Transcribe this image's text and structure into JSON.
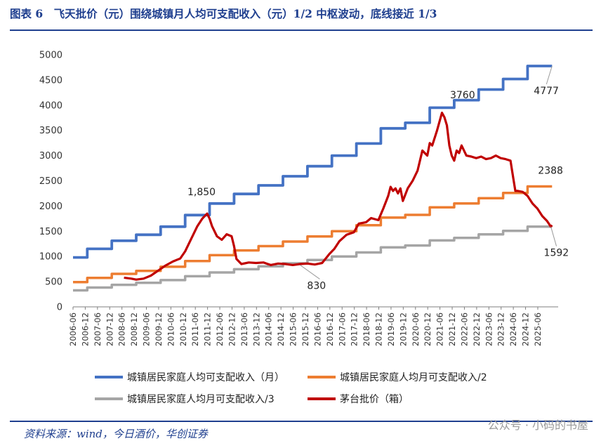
{
  "header": {
    "title": "图表 6　飞天批价（元）围绕城镇月人均可支配收入（元）1/2 中枢波动，底线接近 1/3"
  },
  "footer": {
    "source": "资料来源：wind，今日酒价，华创证券",
    "watermark": "公众号 · 小码的书屋"
  },
  "colors": {
    "blue": "#4472C4",
    "orange": "#ED7D31",
    "gray": "#A5A5A5",
    "red": "#C00000",
    "title": "#1f3f8f"
  },
  "chart_data": {
    "type": "line",
    "title": "飞天批价（元）围绕城镇月人均可支配收入（元）1/2 中枢波动，底线接近 1/3",
    "ylim": [
      0,
      5000
    ],
    "yticks": [
      "0",
      "500",
      "1000",
      "1500",
      "2000",
      "2500",
      "3000",
      "3500",
      "4000",
      "4500",
      "5000"
    ],
    "xlim": [
      2006.417,
      2026.25
    ],
    "categories": [
      "2006-06",
      "2006-12",
      "2007-06",
      "2007-12",
      "2008-06",
      "2008-12",
      "2009-06",
      "2009-12",
      "2010-06",
      "2010-12",
      "2011-06",
      "2011-12",
      "2012-06",
      "2012-12",
      "2013-06",
      "2013-12",
      "2014-06",
      "2014-12",
      "2015-06",
      "2015-12",
      "2016-06",
      "2016-12",
      "2017-06",
      "2017-12",
      "2018-06",
      "2018-12",
      "2019-06",
      "2019-12",
      "2020-06",
      "2020-12",
      "2021-06",
      "2021-12",
      "2022-06",
      "2022-12",
      "2023-06",
      "2023-12",
      "2024-06",
      "2024-12",
      "2025-06"
    ],
    "series": [
      {
        "name": "城镇居民家庭人均可支配收入（月）",
        "color": "#4472C4",
        "x": [
          2006.417,
          2007.0,
          2007.0,
          2008.0,
          2008.0,
          2009.0,
          2009.0,
          2010.0,
          2010.0,
          2011.0,
          2011.0,
          2012.0,
          2012.0,
          2013.0,
          2013.0,
          2014.0,
          2014.0,
          2015.0,
          2015.0,
          2016.0,
          2016.0,
          2017.0,
          2017.0,
          2018.0,
          2018.0,
          2019.0,
          2019.0,
          2020.0,
          2020.0,
          2021.0,
          2021.0,
          2022.0,
          2022.0,
          2023.0,
          2023.0,
          2024.0,
          2024.0,
          2025.0,
          2025.0,
          2026.0
        ],
        "y": [
          980,
          980,
          1150,
          1150,
          1310,
          1310,
          1430,
          1430,
          1590,
          1590,
          1820,
          1820,
          2050,
          2050,
          2240,
          2240,
          2410,
          2410,
          2590,
          2590,
          2790,
          2790,
          3000,
          3000,
          3240,
          3240,
          3540,
          3540,
          3650,
          3650,
          3950,
          3950,
          4100,
          4100,
          4310,
          4310,
          4520,
          4520,
          4777,
          4777
        ]
      },
      {
        "name": "城镇居民家庭人均月可支配收入/2",
        "color": "#ED7D31",
        "x": [
          2006.417,
          2007.0,
          2007.0,
          2008.0,
          2008.0,
          2009.0,
          2009.0,
          2010.0,
          2010.0,
          2011.0,
          2011.0,
          2012.0,
          2012.0,
          2013.0,
          2013.0,
          2014.0,
          2014.0,
          2015.0,
          2015.0,
          2016.0,
          2016.0,
          2017.0,
          2017.0,
          2018.0,
          2018.0,
          2019.0,
          2019.0,
          2020.0,
          2020.0,
          2021.0,
          2021.0,
          2022.0,
          2022.0,
          2023.0,
          2023.0,
          2024.0,
          2024.0,
          2025.0,
          2025.0,
          2026.0
        ],
        "y": [
          490,
          490,
          575,
          575,
          655,
          655,
          715,
          715,
          795,
          795,
          910,
          910,
          1025,
          1025,
          1120,
          1120,
          1205,
          1205,
          1295,
          1295,
          1395,
          1395,
          1500,
          1500,
          1620,
          1620,
          1770,
          1770,
          1825,
          1825,
          1975,
          1975,
          2050,
          2050,
          2155,
          2155,
          2260,
          2260,
          2388,
          2388
        ]
      },
      {
        "name": "城镇居民家庭人均月可支配收入/3",
        "color": "#A5A5A5",
        "x": [
          2006.417,
          2007.0,
          2007.0,
          2008.0,
          2008.0,
          2009.0,
          2009.0,
          2010.0,
          2010.0,
          2011.0,
          2011.0,
          2012.0,
          2012.0,
          2013.0,
          2013.0,
          2014.0,
          2014.0,
          2015.0,
          2015.0,
          2016.0,
          2016.0,
          2017.0,
          2017.0,
          2018.0,
          2018.0,
          2019.0,
          2019.0,
          2020.0,
          2020.0,
          2021.0,
          2021.0,
          2022.0,
          2022.0,
          2023.0,
          2023.0,
          2024.0,
          2024.0,
          2025.0,
          2025.0,
          2026.0
        ],
        "y": [
          327,
          327,
          383,
          383,
          437,
          437,
          477,
          477,
          530,
          530,
          607,
          607,
          683,
          683,
          747,
          747,
          803,
          803,
          863,
          863,
          930,
          930,
          1000,
          1000,
          1080,
          1080,
          1180,
          1180,
          1217,
          1217,
          1317,
          1317,
          1367,
          1367,
          1437,
          1437,
          1507,
          1507,
          1592,
          1592
        ]
      },
      {
        "name": "茅台批价（箱）",
        "color": "#C00000",
        "x": [
          2008.5,
          2008.8,
          2009.0,
          2009.3,
          2009.6,
          2009.9,
          2010.2,
          2010.5,
          2010.8,
          2011.0,
          2011.2,
          2011.5,
          2011.7,
          2011.9,
          2012.0,
          2012.1,
          2012.3,
          2012.5,
          2012.7,
          2012.9,
          2013.0,
          2013.1,
          2013.3,
          2013.6,
          2013.9,
          2014.2,
          2014.5,
          2014.8,
          2015.1,
          2015.4,
          2015.7,
          2016.0,
          2016.3,
          2016.6,
          2016.9,
          2017.1,
          2017.3,
          2017.6,
          2017.9,
          2018.1,
          2018.4,
          2018.6,
          2018.9,
          2019.1,
          2019.3,
          2019.4,
          2019.5,
          2019.6,
          2019.7,
          2019.8,
          2019.9,
          2020.1,
          2020.3,
          2020.5,
          2020.7,
          2020.9,
          2021.0,
          2021.1,
          2021.3,
          2021.5,
          2021.6,
          2021.7,
          2021.8,
          2021.9,
          2022.0,
          2022.1,
          2022.2,
          2022.3,
          2022.5,
          2022.7,
          2022.9,
          2023.1,
          2023.3,
          2023.5,
          2023.7,
          2023.9,
          2024.1,
          2024.3,
          2024.4,
          2024.5,
          2024.6,
          2024.8,
          2025.0,
          2025.2,
          2025.4,
          2025.6,
          2025.8,
          2025.95,
          2026.0
        ],
        "y": [
          580,
          560,
          540,
          560,
          620,
          720,
          820,
          900,
          960,
          1100,
          1300,
          1600,
          1750,
          1850,
          1750,
          1600,
          1400,
          1330,
          1440,
          1400,
          1200,
          950,
          850,
          880,
          870,
          880,
          830,
          860,
          850,
          830,
          850,
          860,
          840,
          870,
          1050,
          1150,
          1300,
          1430,
          1480,
          1650,
          1680,
          1760,
          1720,
          1950,
          2200,
          2380,
          2300,
          2350,
          2250,
          2350,
          2100,
          2350,
          2500,
          2700,
          3100,
          3000,
          3250,
          3200,
          3500,
          3850,
          3760,
          3600,
          3200,
          3000,
          2900,
          3100,
          3050,
          3200,
          3000,
          2980,
          2950,
          2980,
          2930,
          2950,
          3000,
          2950,
          2930,
          2900,
          2600,
          2300,
          2300,
          2280,
          2200,
          2050,
          1950,
          1800,
          1700,
          1592,
          1620
        ]
      }
    ],
    "annotations": [
      {
        "text": "1,850",
        "x": 2011.9,
        "y": 1850
      },
      {
        "text": "3760",
        "x": 2021.6,
        "y": 3760
      },
      {
        "text": "4777",
        "x": 2026.0,
        "y": 4777
      },
      {
        "text": "2388",
        "x": 2026.0,
        "y": 2388
      },
      {
        "text": "1592",
        "x": 2025.95,
        "y": 1592
      },
      {
        "text": "830",
        "x": 2015.7,
        "y": 830
      }
    ],
    "legend": {
      "placement": "bottom"
    }
  }
}
